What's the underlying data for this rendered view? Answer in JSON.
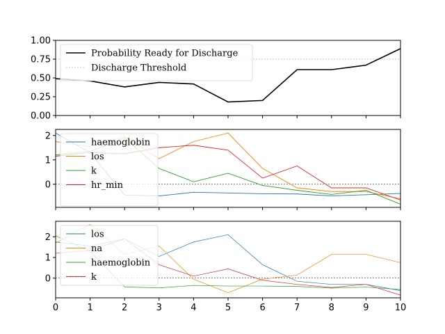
{
  "chart_data": [
    {
      "type": "line",
      "x": [
        0,
        1,
        2,
        3,
        4,
        5,
        6,
        7,
        8,
        9,
        10
      ],
      "xlim": [
        0,
        10
      ],
      "ylim": [
        0,
        1
      ],
      "yticks": [
        "0.00",
        "0.25",
        "0.50",
        "0.75",
        "1.00"
      ],
      "yticks_values": [
        0,
        0.25,
        0.5,
        0.75,
        1.0
      ],
      "legend_position": "upper-left",
      "series": [
        {
          "name": "Probability Ready for Discharge",
          "color": "#000000",
          "style": "solid",
          "values": [
            0.49,
            0.46,
            0.38,
            0.44,
            0.42,
            0.18,
            0.2,
            0.61,
            0.61,
            0.67,
            0.89
          ]
        }
      ],
      "threshold": {
        "name": "Discharge Threshold",
        "color": "#ff9999",
        "style": "dashed",
        "value": 0.75
      }
    },
    {
      "type": "line",
      "x": [
        0,
        1,
        2,
        3,
        4,
        5,
        6,
        7,
        8,
        9,
        10
      ],
      "xlim": [
        0,
        10
      ],
      "ylim": [
        -0.95,
        2.25
      ],
      "yticks": [
        "0",
        "1",
        "2"
      ],
      "yticks_values": [
        0,
        1,
        2
      ],
      "zero_line": true,
      "legend_position": "upper-left",
      "series": [
        {
          "name": "haemoglobin",
          "color": "#1f77b4",
          "values": [
            2.1,
            1.3,
            -0.44,
            -0.48,
            -0.33,
            -0.36,
            -0.39,
            -0.4,
            -0.48,
            -0.43,
            -0.38
          ]
        },
        {
          "name": "los",
          "color": "#ff7f0e",
          "values": [
            1.75,
            1.55,
            1.95,
            1.05,
            1.75,
            2.1,
            0.65,
            -0.15,
            -0.3,
            -0.3,
            -0.6
          ]
        },
        {
          "name": "k",
          "color": "#2ca02c",
          "values": [
            1.2,
            1.35,
            1.9,
            0.65,
            0.1,
            0.45,
            -0.05,
            -0.25,
            -0.42,
            -0.25,
            -0.82
          ]
        },
        {
          "name": "hr_min",
          "color": "#d62728",
          "values": [
            1.15,
            1.3,
            1.25,
            1.5,
            1.6,
            1.4,
            0.25,
            0.75,
            -0.15,
            -0.15,
            -0.65
          ]
        }
      ]
    },
    {
      "type": "line",
      "x": [
        0,
        1,
        2,
        3,
        4,
        5,
        6,
        7,
        8,
        9,
        10
      ],
      "xlim": [
        0,
        10
      ],
      "ylim": [
        -0.95,
        2.75
      ],
      "xticks": [
        "0",
        "1",
        "2",
        "3",
        "4",
        "5",
        "6",
        "7",
        "8",
        "9",
        "10"
      ],
      "yticks": [
        "0",
        "1",
        "2"
      ],
      "yticks_values": [
        0,
        1,
        2
      ],
      "zero_line": true,
      "legend_position": "upper-left",
      "series": [
        {
          "name": "los",
          "color": "#1f77b4",
          "values": [
            1.75,
            1.55,
            1.9,
            1.05,
            1.75,
            2.1,
            0.65,
            -0.15,
            -0.3,
            -0.3,
            -0.6
          ]
        },
        {
          "name": "na",
          "color": "#ff7f0e",
          "values": [
            1.7,
            2.6,
            1.15,
            1.55,
            -0.05,
            -0.7,
            -0.05,
            0.15,
            1.15,
            1.15,
            0.75
          ]
        },
        {
          "name": "haemoglobin",
          "color": "#2ca02c",
          "values": [
            2.05,
            1.3,
            -0.42,
            -0.47,
            -0.35,
            -0.38,
            -0.38,
            -0.4,
            -0.48,
            -0.43,
            -0.55
          ]
        },
        {
          "name": "k",
          "color": "#d62728",
          "values": [
            1.2,
            1.35,
            1.9,
            0.65,
            0.1,
            0.45,
            -0.1,
            -0.3,
            -0.45,
            -0.3,
            -0.82
          ]
        }
      ]
    }
  ]
}
